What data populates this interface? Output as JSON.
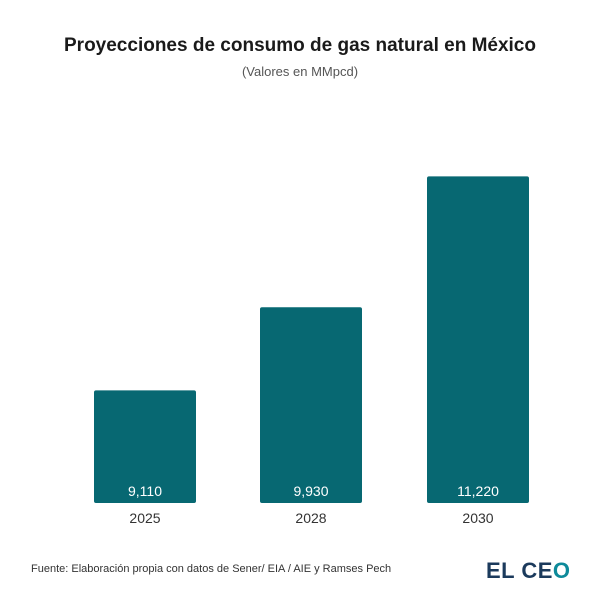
{
  "chart_data": {
    "type": "bar",
    "title": "Proyecciones de consumo de gas natural en México",
    "subtitle": "(Valores en MMpcd)",
    "categories": [
      "2025",
      "2028",
      "2030"
    ],
    "values": [
      9110,
      9930,
      11220
    ],
    "value_labels": [
      "9,110",
      "9,930",
      "11,220"
    ],
    "xlabel": "",
    "ylabel": "",
    "ylim": [
      8000,
      11500
    ],
    "grid": false,
    "bar_color": "#076872"
  },
  "footer": {
    "source": "Fuente: Elaboración propia con datos de Sener/ EIA / AIE y Ramses Pech",
    "logo": "EL CEO"
  }
}
